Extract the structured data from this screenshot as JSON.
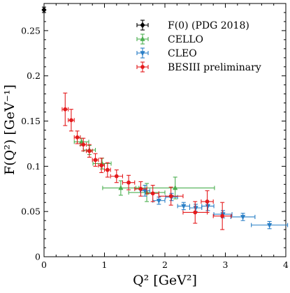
{
  "colors": {
    "pdg": "#000000",
    "cello": "#4caf50",
    "cleo": "#2a7fc6",
    "besiii": "#e41a1c"
  },
  "chart_data": {
    "type": "scatter",
    "title": "",
    "xlabel": "Q² [GeV²]",
    "ylabel": "F(Q²) [GeV⁻¹]",
    "xlim": [
      0,
      4
    ],
    "ylim": [
      0,
      0.28
    ],
    "xticks": [
      0,
      1,
      2,
      3,
      4
    ],
    "yticks": [
      0,
      0.05,
      0.1,
      0.15,
      0.2,
      0.25
    ],
    "xtick_labels": [
      "0",
      "1",
      "2",
      "3",
      "4"
    ],
    "ytick_labels": [
      "0",
      "0.05",
      "0.1",
      "0.15",
      "0.2",
      "0.25"
    ],
    "grid": false,
    "legend_position": "top-right",
    "series": [
      {
        "name": "F(0) (PDG 2018)",
        "color_key": "pdg",
        "marker": "diamond",
        "points": [
          {
            "x": 0.0,
            "y": 0.273,
            "xerr": 0.0,
            "yerr": 0.003
          }
        ]
      },
      {
        "name": "CELLO",
        "color_key": "cello",
        "marker": "triangle-up",
        "points": [
          {
            "x": 0.62,
            "y": 0.127,
            "xerr": 0.12,
            "yerr": 0.004
          },
          {
            "x": 0.75,
            "y": 0.118,
            "xerr": 0.1,
            "yerr": 0.005
          },
          {
            "x": 0.96,
            "y": 0.103,
            "xerr": 0.15,
            "yerr": 0.006
          },
          {
            "x": 1.27,
            "y": 0.076,
            "xerr": 0.3,
            "yerr": 0.008
          },
          {
            "x": 1.7,
            "y": 0.071,
            "xerr": 0.3,
            "yerr": 0.01
          },
          {
            "x": 2.17,
            "y": 0.076,
            "xerr": 0.65,
            "yerr": 0.012
          }
        ]
      },
      {
        "name": "CLEO",
        "color_key": "cleo",
        "marker": "triangle-down",
        "points": [
          {
            "x": 1.67,
            "y": 0.073,
            "xerr": 0.08,
            "yerr": 0.006
          },
          {
            "x": 1.9,
            "y": 0.062,
            "xerr": 0.1,
            "yerr": 0.004
          },
          {
            "x": 2.11,
            "y": 0.066,
            "xerr": 0.1,
            "yerr": 0.004
          },
          {
            "x": 2.31,
            "y": 0.056,
            "xerr": 0.1,
            "yerr": 0.004
          },
          {
            "x": 2.51,
            "y": 0.054,
            "xerr": 0.1,
            "yerr": 0.004
          },
          {
            "x": 2.71,
            "y": 0.056,
            "xerr": 0.1,
            "yerr": 0.005
          },
          {
            "x": 2.96,
            "y": 0.047,
            "xerr": 0.15,
            "yerr": 0.004
          },
          {
            "x": 3.29,
            "y": 0.044,
            "xerr": 0.2,
            "yerr": 0.004
          },
          {
            "x": 3.73,
            "y": 0.035,
            "xerr": 0.3,
            "yerr": 0.004
          }
        ]
      },
      {
        "name": "BESIII preliminary",
        "color_key": "besiii",
        "marker": "circle",
        "points": [
          {
            "x": 0.35,
            "y": 0.163,
            "xerr": 0.05,
            "yerr": 0.018
          },
          {
            "x": 0.45,
            "y": 0.151,
            "xerr": 0.05,
            "yerr": 0.012
          },
          {
            "x": 0.55,
            "y": 0.132,
            "xerr": 0.05,
            "yerr": 0.007
          },
          {
            "x": 0.65,
            "y": 0.124,
            "xerr": 0.05,
            "yerr": 0.007
          },
          {
            "x": 0.75,
            "y": 0.117,
            "xerr": 0.05,
            "yerr": 0.007
          },
          {
            "x": 0.85,
            "y": 0.107,
            "xerr": 0.05,
            "yerr": 0.007
          },
          {
            "x": 0.95,
            "y": 0.101,
            "xerr": 0.05,
            "yerr": 0.008
          },
          {
            "x": 1.05,
            "y": 0.096,
            "xerr": 0.05,
            "yerr": 0.008
          },
          {
            "x": 1.2,
            "y": 0.089,
            "xerr": 0.1,
            "yerr": 0.007
          },
          {
            "x": 1.4,
            "y": 0.082,
            "xerr": 0.1,
            "yerr": 0.008
          },
          {
            "x": 1.6,
            "y": 0.075,
            "xerr": 0.1,
            "yerr": 0.008
          },
          {
            "x": 1.8,
            "y": 0.07,
            "xerr": 0.1,
            "yerr": 0.009
          },
          {
            "x": 2.1,
            "y": 0.067,
            "xerr": 0.2,
            "yerr": 0.01
          },
          {
            "x": 2.5,
            "y": 0.049,
            "xerr": 0.2,
            "yerr": 0.012
          },
          {
            "x": 2.7,
            "y": 0.061,
            "xerr": 0.1,
            "yerr": 0.012
          },
          {
            "x": 2.95,
            "y": 0.045,
            "xerr": 0.15,
            "yerr": 0.015
          }
        ]
      }
    ]
  }
}
